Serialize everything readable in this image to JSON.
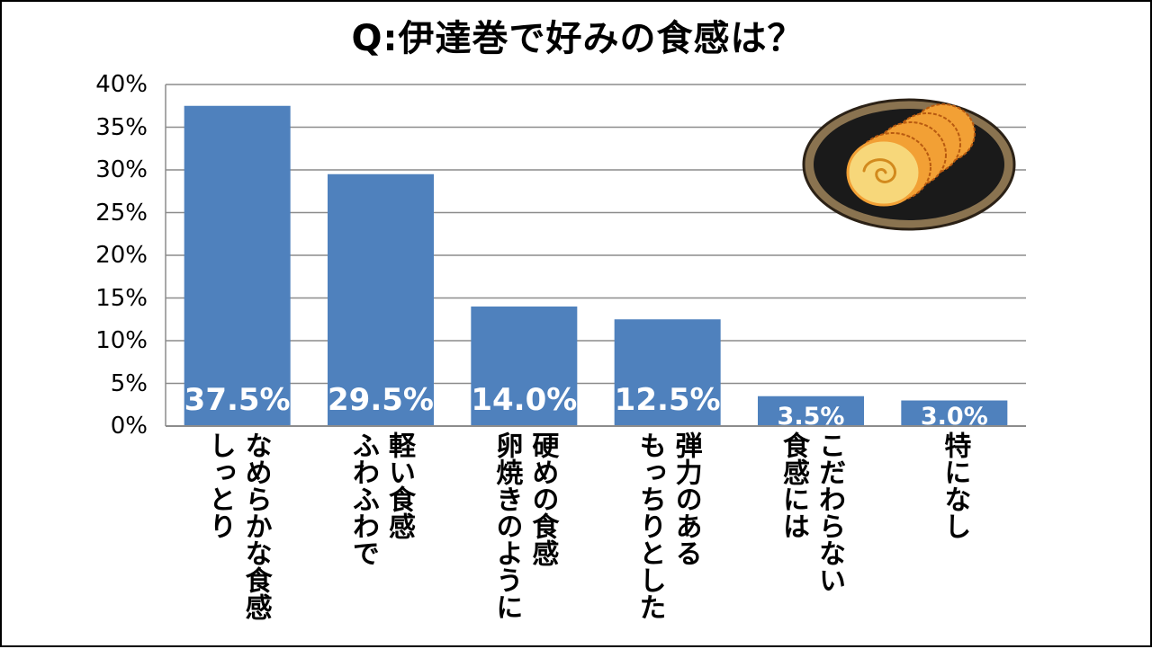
{
  "chart_data": {
    "type": "bar",
    "title": "Q:伊達巻で好みの食感は？",
    "categories": [
      [
        "なめらかな食感",
        "しっとり"
      ],
      [
        "軽い食感",
        "ふわふわで"
      ],
      [
        "硬めの食感",
        "卵焼きのように"
      ],
      [
        "弾力のある",
        "もっちりとした"
      ],
      [
        "こだわらない",
        "食感には"
      ],
      [
        "特になし"
      ]
    ],
    "values": [
      37.5,
      29.5,
      14.0,
      12.5,
      3.5,
      3.0
    ],
    "value_labels": [
      "37.5%",
      "29.5%",
      "14.0%",
      "12.5%",
      "3.5%",
      "3.0%"
    ],
    "yticks": [
      "0%",
      "5%",
      "10%",
      "15%",
      "20%",
      "25%",
      "30%",
      "35%",
      "40%"
    ],
    "ylim": [
      0,
      40
    ],
    "grid": true,
    "legend": "none",
    "bar_color": "#4f81bd",
    "grid_color": "#8c8c8c",
    "label_color": "#ffffff"
  },
  "illustration": {
    "icon": "datemaki-plate-icon"
  }
}
